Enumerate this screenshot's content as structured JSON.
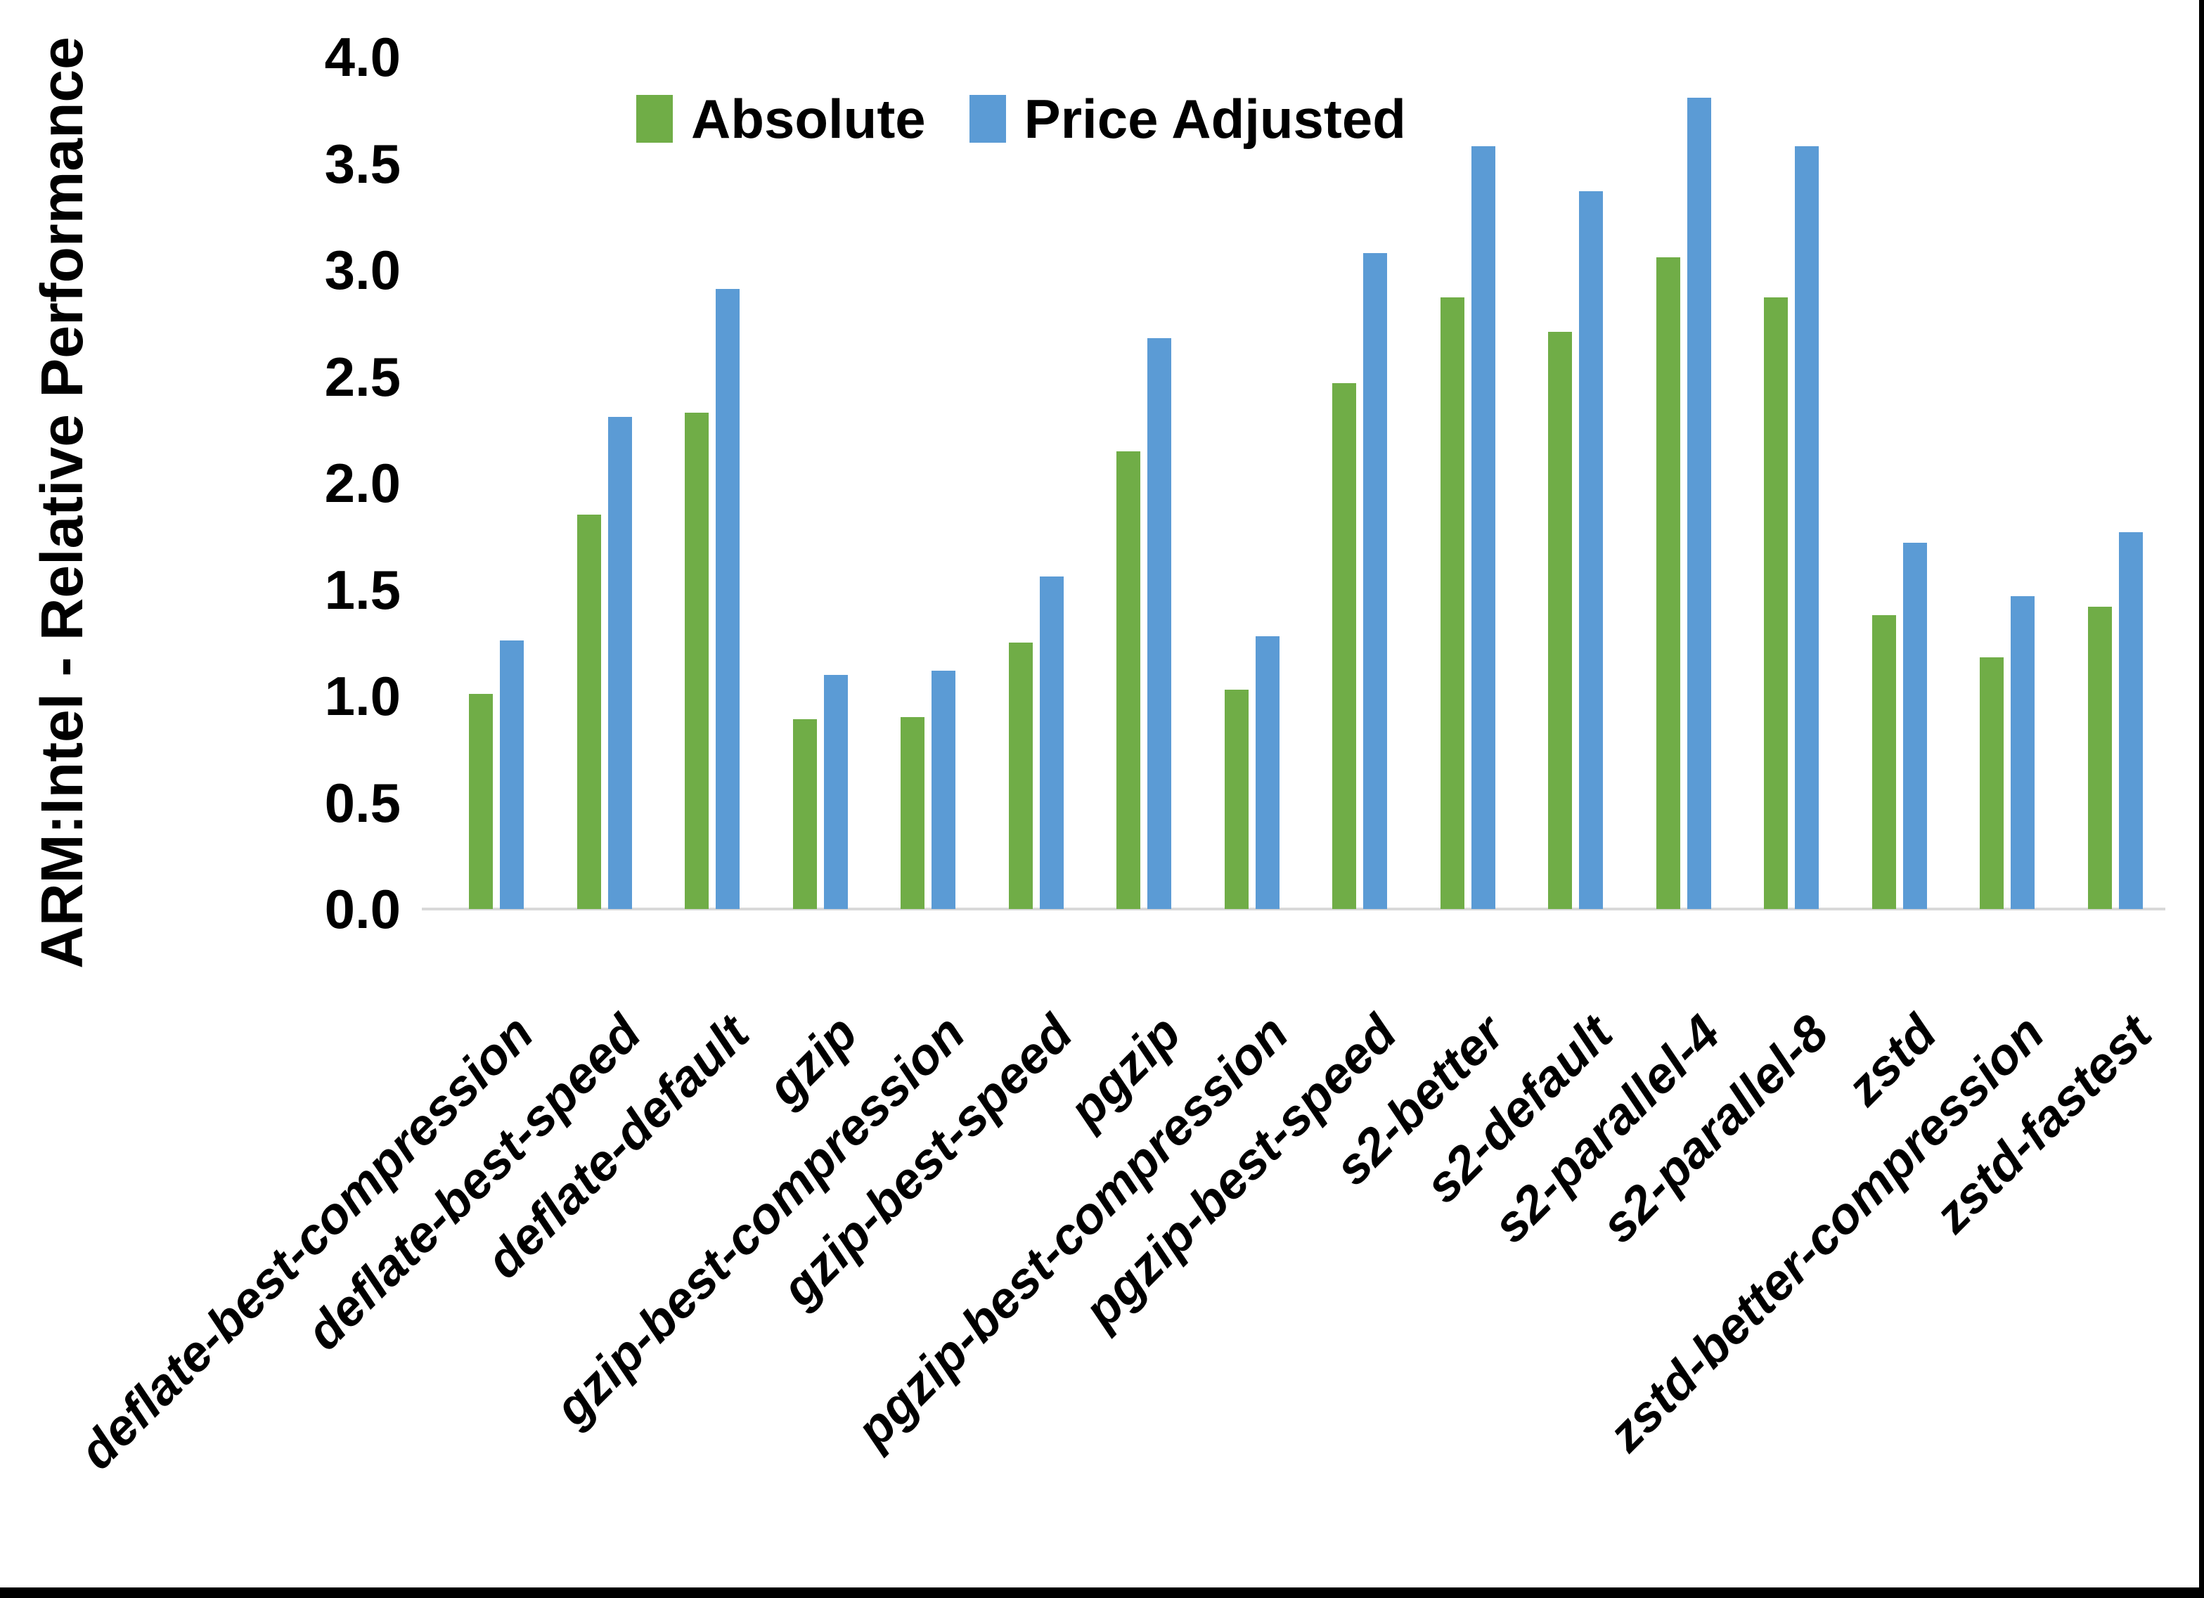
{
  "chart_data": {
    "type": "bar",
    "y_axis_title": "ARM:Intel - Relative Performance",
    "xlabel": "",
    "ylabel": "ARM:Intel - Relative Performance",
    "ylim": [
      0.0,
      4.0
    ],
    "y_tick_step": 0.5,
    "y_ticks": [
      "0.0",
      "0.5",
      "1.0",
      "1.5",
      "2.0",
      "2.5",
      "3.0",
      "3.5",
      "4.0"
    ],
    "grid": "off",
    "legend_position": "top-center",
    "axis_line_color": "#d9d9d9",
    "categories": [
      "deflate-best-compression",
      "deflate-best-speed",
      "deflate-default",
      "gzip",
      "gzip-best-compression",
      "gzip-best-speed",
      "pgzip",
      "pgzip-best-compression",
      "pgzip-best-speed",
      "s2-better",
      "s2-default",
      "s2-parallel-4",
      "s2-parallel-8",
      "zstd",
      "zstd-better-compression",
      "zstd-fastest"
    ],
    "series": [
      {
        "name": "Absolute",
        "color": "#70ad47",
        "values": [
          1.01,
          1.85,
          2.33,
          0.89,
          0.9,
          1.25,
          2.15,
          1.03,
          2.47,
          2.87,
          2.71,
          3.06,
          2.87,
          1.38,
          1.18,
          1.42
        ]
      },
      {
        "name": "Price Adjusted",
        "color": "#5b9bd5",
        "values": [
          1.26,
          2.31,
          2.91,
          1.1,
          1.12,
          1.56,
          2.68,
          1.28,
          3.08,
          3.58,
          3.37,
          3.81,
          3.58,
          1.72,
          1.47,
          1.77
        ]
      }
    ]
  }
}
